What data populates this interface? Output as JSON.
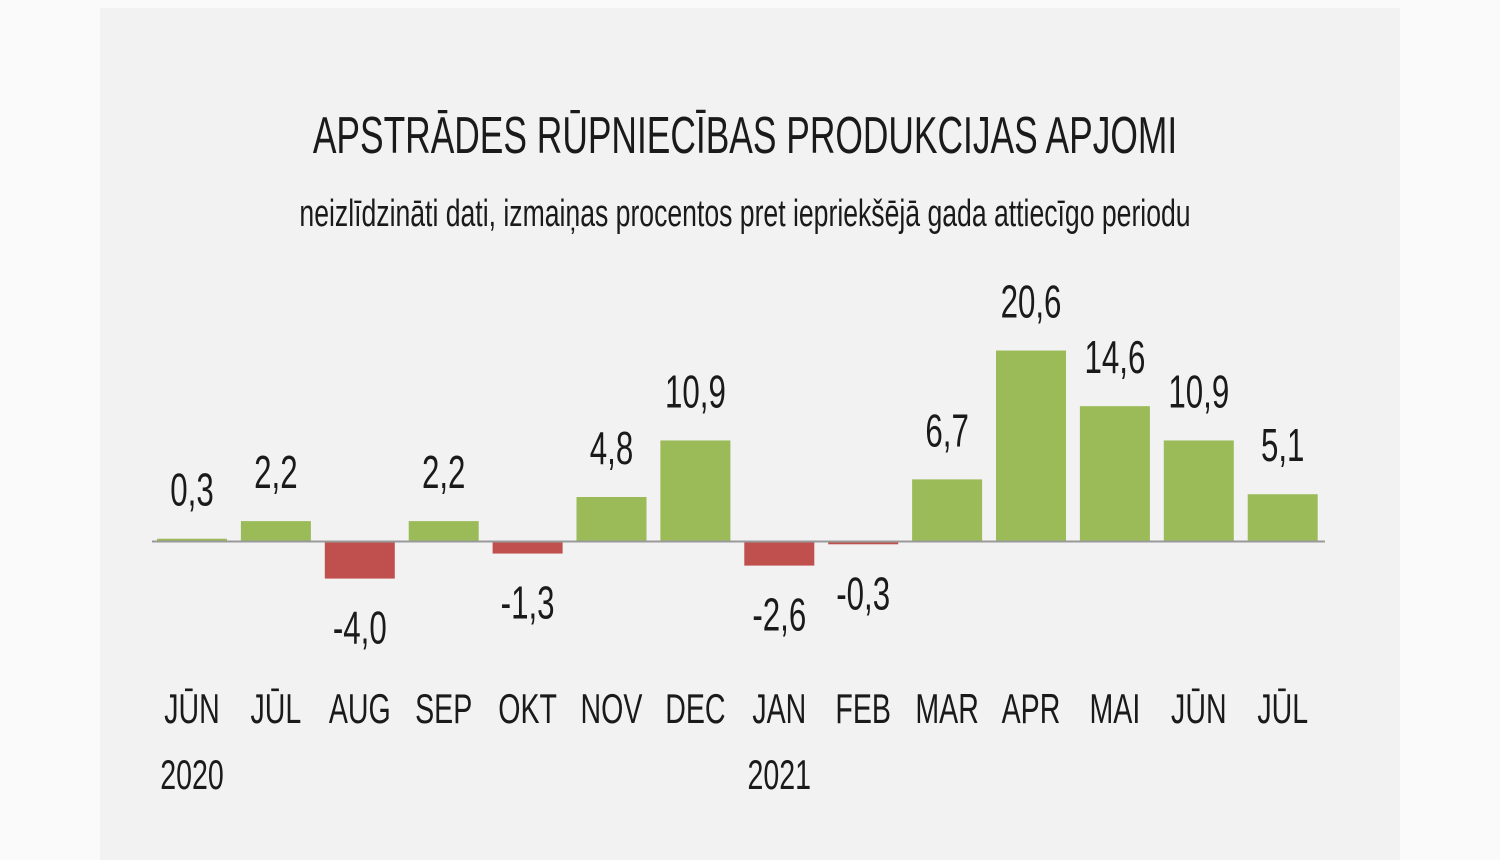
{
  "chart_data": {
    "type": "bar",
    "title": "APSTRĀDES RŪPNIECĪBAS PRODUKCIJAS APJOMI",
    "subtitle": "neizlīdzināti dati, izmaiņas procentos pret iepriekšējā gada attiecīgo periodu",
    "categories": [
      "JŪN",
      "JŪL",
      "AUG",
      "SEP",
      "OKT",
      "NOV",
      "DEC",
      "JAN",
      "FEB",
      "MAR",
      "APR",
      "MAI",
      "JŪN",
      "JŪL"
    ],
    "year_labels": [
      {
        "index": 0,
        "label": "2020"
      },
      {
        "index": 7,
        "label": "2021"
      }
    ],
    "values": [
      0.3,
      2.2,
      -4.0,
      2.2,
      -1.3,
      4.8,
      10.9,
      -2.6,
      -0.3,
      6.7,
      20.6,
      14.6,
      10.9,
      5.1
    ],
    "data_labels": [
      "0,3",
      "2,2",
      "-4,0",
      "2,2",
      "-1,3",
      "4,8",
      "10,9",
      "-2,6",
      "-0,3",
      "6,7",
      "20,6",
      "14,6",
      "10,9",
      "5,1"
    ],
    "xlabel": "",
    "ylabel": "",
    "grid": false,
    "legend": "none",
    "colors": {
      "positive": "#9bbb59",
      "negative": "#c0504d",
      "axis": "#999999"
    }
  }
}
